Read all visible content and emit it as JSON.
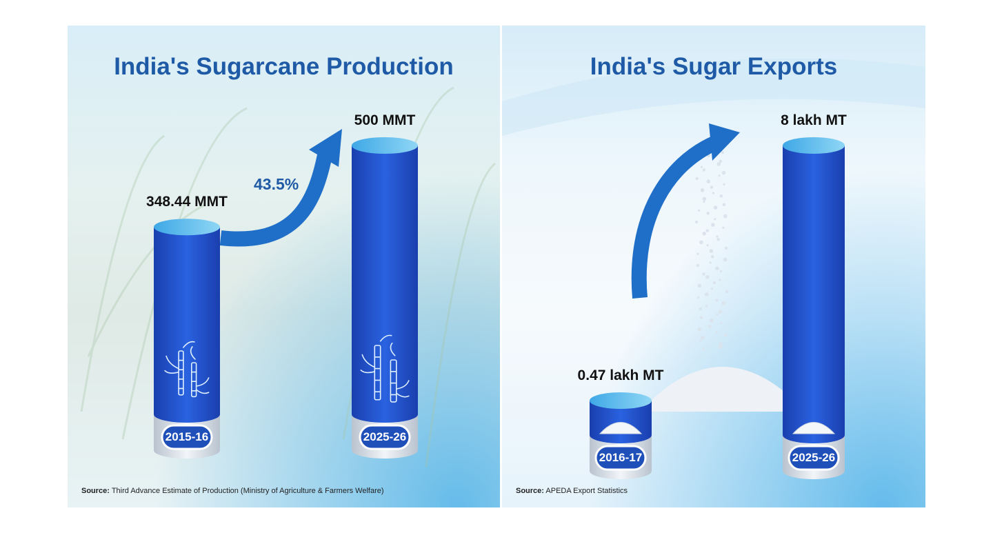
{
  "chart_data": [
    {
      "type": "bar",
      "title": "India's Sugarcane Production",
      "categories": [
        "2015-16",
        "2025-26"
      ],
      "values": [
        348.44,
        500
      ],
      "value_labels": [
        "348.44 MMT",
        "500 MMT"
      ],
      "growth_label": "43.5%",
      "source_prefix": "Source:",
      "source_text": "Third Advance Estimate of Production (Ministry of Agriculture & Farmers Welfare)",
      "colors": {
        "title": "#1f5aa6",
        "bar": "#1e4fc6",
        "arrow": "#1f6fc8"
      }
    },
    {
      "type": "bar",
      "title": "India's Sugar Exports",
      "categories": [
        "2016-17",
        "2025-26"
      ],
      "values": [
        0.47,
        8
      ],
      "value_labels": [
        "0.47 lakh MT",
        "8 lakh MT"
      ],
      "source_prefix": "Source:",
      "source_text": "APEDA Export Statistics",
      "colors": {
        "title": "#1f5aa6",
        "bar": "#1e4fc6",
        "arrow": "#1f6fc8"
      }
    }
  ]
}
